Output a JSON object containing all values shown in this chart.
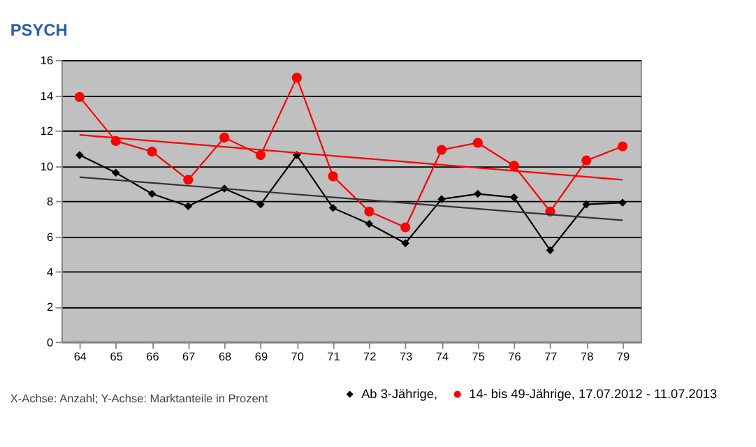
{
  "chart_data": {
    "type": "line",
    "title": "PSYCH",
    "categories": [
      "64",
      "65",
      "66",
      "67",
      "68",
      "69",
      "70",
      "71",
      "72",
      "73",
      "74",
      "75",
      "76",
      "77",
      "78",
      "79"
    ],
    "series": [
      {
        "name": "Ab 3-Jährige,",
        "color": "#000000",
        "marker": "diamond",
        "values": [
          10.6,
          9.6,
          8.4,
          7.7,
          8.7,
          7.8,
          10.6,
          7.6,
          6.7,
          5.6,
          8.1,
          8.4,
          8.2,
          5.2,
          7.8,
          7.9
        ]
      },
      {
        "name": "14- bis 49-Jährige, 17.07.2012 - 11.07.2013",
        "color": "#ff0000",
        "marker": "circle",
        "values": [
          13.9,
          11.4,
          10.8,
          9.2,
          11.6,
          10.6,
          15.0,
          9.4,
          7.4,
          6.5,
          10.9,
          11.3,
          10.0,
          7.4,
          10.3,
          11.1
        ]
      },
      {
        "type": "line",
        "color": "#ff0000",
        "marker": "none",
        "x": [
          "64",
          "79"
        ],
        "values": [
          11.75,
          9.2
        ]
      },
      {
        "type": "line",
        "color": "#333333",
        "marker": "none",
        "x": [
          "64",
          "79"
        ],
        "values": [
          9.35,
          6.9
        ]
      }
    ],
    "ylim": [
      0,
      16
    ],
    "yticks": [
      0,
      2,
      4,
      6,
      8,
      10,
      12,
      14,
      16
    ],
    "grid": "y",
    "legend": "bottom",
    "annotations": [
      "X-Achse: Anzahl; Y-Achse: Marktanteile in Prozent"
    ]
  }
}
